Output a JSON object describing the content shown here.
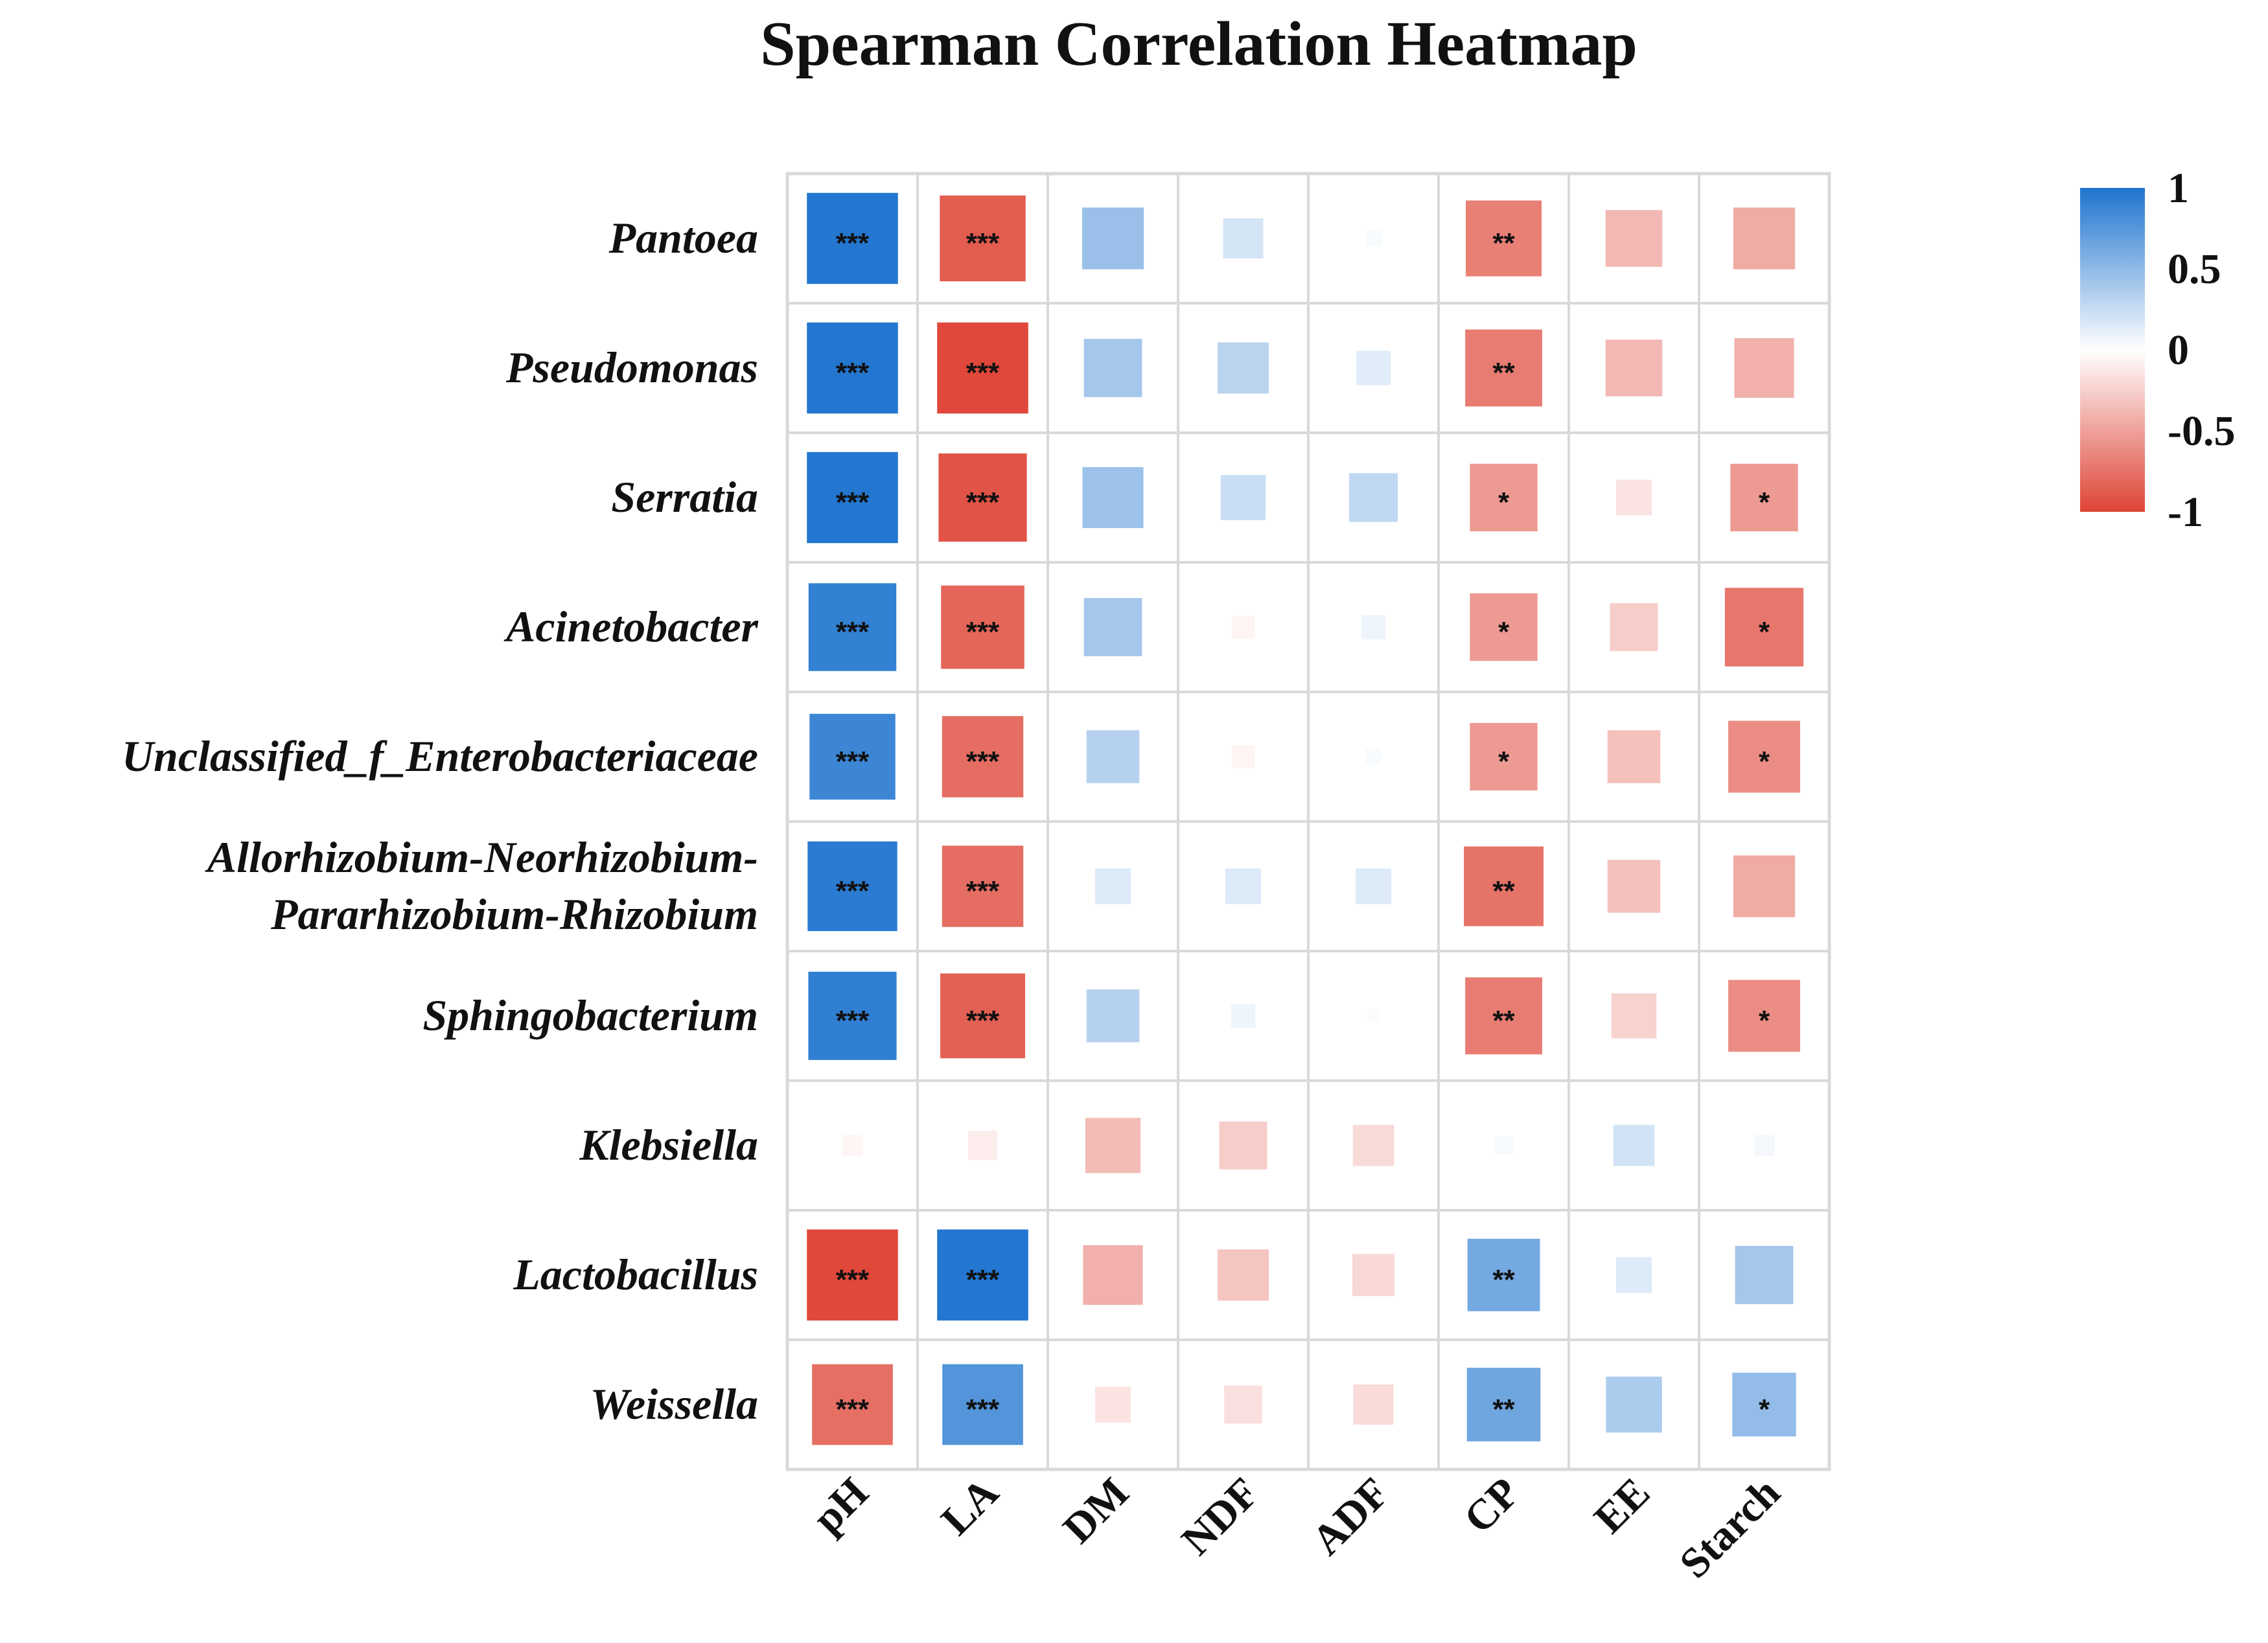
{
  "chart_data": {
    "type": "heatmap",
    "title": "Spearman Correlation Heatmap",
    "rows": [
      "Pantoea",
      "Pseudomonas",
      "Serratia",
      "Acinetobacter",
      "Unclassified_f_Enterobacteriaceae",
      "Allorhizobium-Neorhizobium-Pararhizobium-Rhizobium",
      "Sphingobacterium",
      "Klebsiella",
      "Lactobacillus",
      "Weissella"
    ],
    "row_label_lines": [
      [
        "Pantoea"
      ],
      [
        "Pseudomonas"
      ],
      [
        "Serratia"
      ],
      [
        "Acinetobacter"
      ],
      [
        "Unclassified_f_Enterobacteriaceae"
      ],
      [
        "Allorhizobium-Neorhizobium-",
        "Pararhizobium-Rhizobium"
      ],
      [
        "Sphingobacterium"
      ],
      [
        "Klebsiella"
      ],
      [
        "Lactobacillus"
      ],
      [
        "Weissella"
      ]
    ],
    "columns": [
      "pH",
      "LA",
      "DM",
      "NDF",
      "ADF",
      "CP",
      "EE",
      "Starch"
    ],
    "values": [
      [
        0.98,
        -0.87,
        0.45,
        0.19,
        0.03,
        -0.68,
        -0.38,
        -0.45
      ],
      [
        0.98,
        -0.98,
        0.4,
        0.31,
        0.14,
        -0.7,
        -0.38,
        -0.42
      ],
      [
        0.98,
        -0.92,
        0.44,
        0.24,
        0.28,
        -0.54,
        -0.15,
        -0.54
      ],
      [
        0.91,
        -0.82,
        0.4,
        -0.06,
        0.07,
        -0.54,
        -0.27,
        -0.73
      ],
      [
        0.87,
        -0.78,
        0.33,
        -0.06,
        0.03,
        -0.54,
        -0.33,
        -0.61
      ],
      [
        0.95,
        -0.78,
        0.15,
        0.15,
        0.15,
        -0.75,
        -0.33,
        -0.45
      ],
      [
        0.92,
        -0.85,
        0.33,
        0.07,
        0.02,
        -0.7,
        -0.24,
        -0.61
      ],
      [
        -0.05,
        -0.1,
        -0.36,
        -0.27,
        -0.2,
        0.04,
        0.2,
        0.05
      ],
      [
        -0.98,
        0.98,
        -0.42,
        -0.31,
        -0.21,
        0.62,
        0.15,
        0.4
      ],
      [
        -0.77,
        0.77,
        -0.15,
        -0.17,
        -0.19,
        0.64,
        0.37,
        0.48
      ]
    ],
    "significance": [
      [
        "***",
        "***",
        "",
        "",
        "",
        "**",
        "",
        ""
      ],
      [
        "***",
        "***",
        "",
        "",
        "",
        "**",
        "",
        ""
      ],
      [
        "***",
        "***",
        "",
        "",
        "",
        "*",
        "",
        "*"
      ],
      [
        "***",
        "***",
        "",
        "",
        "",
        "*",
        "",
        "*"
      ],
      [
        "***",
        "***",
        "",
        "",
        "",
        "*",
        "",
        "*"
      ],
      [
        "***",
        "***",
        "",
        "",
        "",
        "**",
        "",
        ""
      ],
      [
        "***",
        "***",
        "",
        "",
        "",
        "**",
        "",
        "*"
      ],
      [
        "",
        "",
        "",
        "",
        "",
        "",
        "",
        ""
      ],
      [
        "***",
        "***",
        "",
        "",
        "",
        "**",
        "",
        ""
      ],
      [
        "***",
        "***",
        "",
        "",
        "",
        "**",
        "",
        "*"
      ]
    ],
    "color_range": [
      -1,
      1
    ],
    "legend_ticks": [
      {
        "value": 1,
        "label": "1"
      },
      {
        "value": 0.5,
        "label": "0.5"
      },
      {
        "value": 0,
        "label": "0"
      },
      {
        "value": -0.5,
        "label": "-0.5"
      },
      {
        "value": -1,
        "label": "-1"
      }
    ],
    "colors": {
      "positive": "#1f74cf",
      "zero": "#ffffff",
      "negative": "#de4436",
      "grid": "#d9d9d9"
    },
    "legend_position": "right"
  }
}
